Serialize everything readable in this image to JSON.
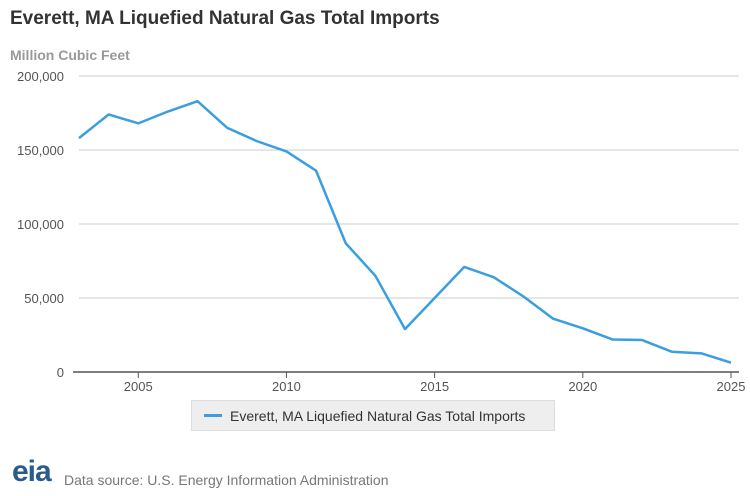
{
  "chart_data": {
    "type": "line",
    "title": "Everett, MA Liquefied Natural Gas Total Imports",
    "ylabel": "Million Cubic Feet",
    "xlabel": "",
    "x": [
      2003,
      2004,
      2005,
      2006,
      2007,
      2008,
      2009,
      2010,
      2011,
      2012,
      2013,
      2014,
      2015,
      2016,
      2017,
      2018,
      2019,
      2020,
      2021,
      2022,
      2023,
      2024,
      2025
    ],
    "series": [
      {
        "name": "Everett, MA Liquefied Natural Gas Total Imports",
        "values": [
          158000,
          174000,
          168000,
          176000,
          183000,
          165000,
          156000,
          149000,
          136000,
          87000,
          65000,
          29000,
          50000,
          71000,
          64000,
          51000,
          36000,
          29500,
          22000,
          21600,
          13700,
          12600,
          6300
        ]
      }
    ],
    "xlim": [
      2003,
      2025
    ],
    "ylim": [
      0,
      200000
    ],
    "xticks": [
      "2005",
      "2010",
      "2015",
      "2020",
      "2025"
    ],
    "yticks": [
      "0",
      "50,000",
      "100,000",
      "150,000",
      "200,000"
    ],
    "grid": true,
    "legend": "bottom",
    "color": "#3b9ede"
  },
  "footer": {
    "logo": "eia",
    "source": "Data source: U.S. Energy Information Administration"
  }
}
